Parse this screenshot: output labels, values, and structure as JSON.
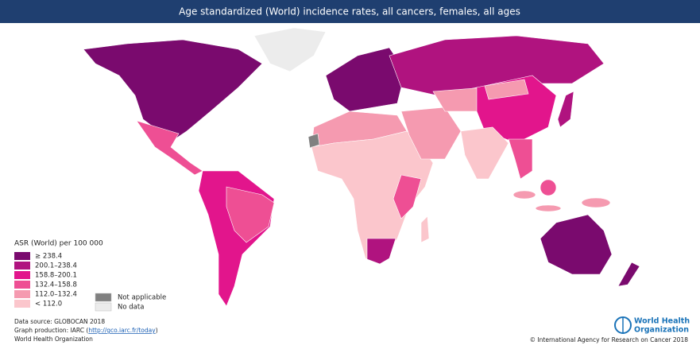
{
  "header": {
    "title": "Age standardized (World) incidence rates, all cancers, females, all ages"
  },
  "legend": {
    "title": "ASR (World) per 100 000",
    "items": [
      {
        "label": "≥ 238.4",
        "color": "#7a0a6e"
      },
      {
        "label": "200.1–238.4",
        "color": "#b0137f"
      },
      {
        "label": "158.8–200.1",
        "color": "#e2158c"
      },
      {
        "label": "132.4–158.8",
        "color": "#ee4f94"
      },
      {
        "label": "112.0–132.4",
        "color": "#f59ab0"
      },
      {
        "label": "< 112.0",
        "color": "#fbc6cc"
      }
    ],
    "extra": [
      {
        "label": "Not applicable",
        "color": "#808080"
      },
      {
        "label": "No data",
        "color": "#ececec"
      }
    ]
  },
  "footer": {
    "source": "Data source: GLOBOCAN 2018",
    "production": {
      "prefix": "Graph production: IARC (",
      "link": "http://gco.iarc.fr/today",
      "suffix": ")"
    },
    "org": "World Health Organization",
    "logo": [
      "World Health",
      "Organization"
    ],
    "copyright": "© International Agency for Research on Cancer 2018"
  }
}
